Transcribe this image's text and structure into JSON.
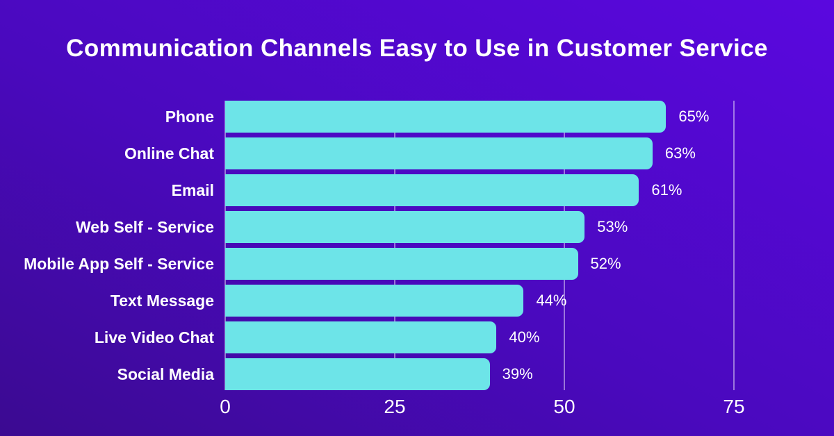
{
  "page": {
    "background_gradient": [
      "#3B0A91",
      "#5A08DF"
    ],
    "text_color": "#FFFFFF"
  },
  "chart_data": {
    "type": "bar",
    "orientation": "horizontal",
    "title": "Communication Channels Easy to Use in Customer Service",
    "categories": [
      "Phone",
      "Online Chat",
      "Email",
      "Web Self - Service",
      "Mobile App Self - Service",
      "Text Message",
      "Live Video Chat",
      "Social Media"
    ],
    "values": [
      65,
      63,
      61,
      53,
      52,
      44,
      40,
      39
    ],
    "value_labels": [
      "65%",
      "63%",
      "61%",
      "53%",
      "52%",
      "44%",
      "40%",
      "39%"
    ],
    "xticks": [
      0,
      25,
      50,
      75
    ],
    "xtick_labels": [
      "0",
      "25",
      "50",
      "75"
    ],
    "xlim": [
      0,
      75
    ],
    "xlabel": "",
    "ylabel": "",
    "grid": true,
    "legend": false,
    "bar_color": "#6DE4E8",
    "gridline_color": "rgba(255,255,255,0.45)",
    "label_color": "#FFFFFF"
  }
}
